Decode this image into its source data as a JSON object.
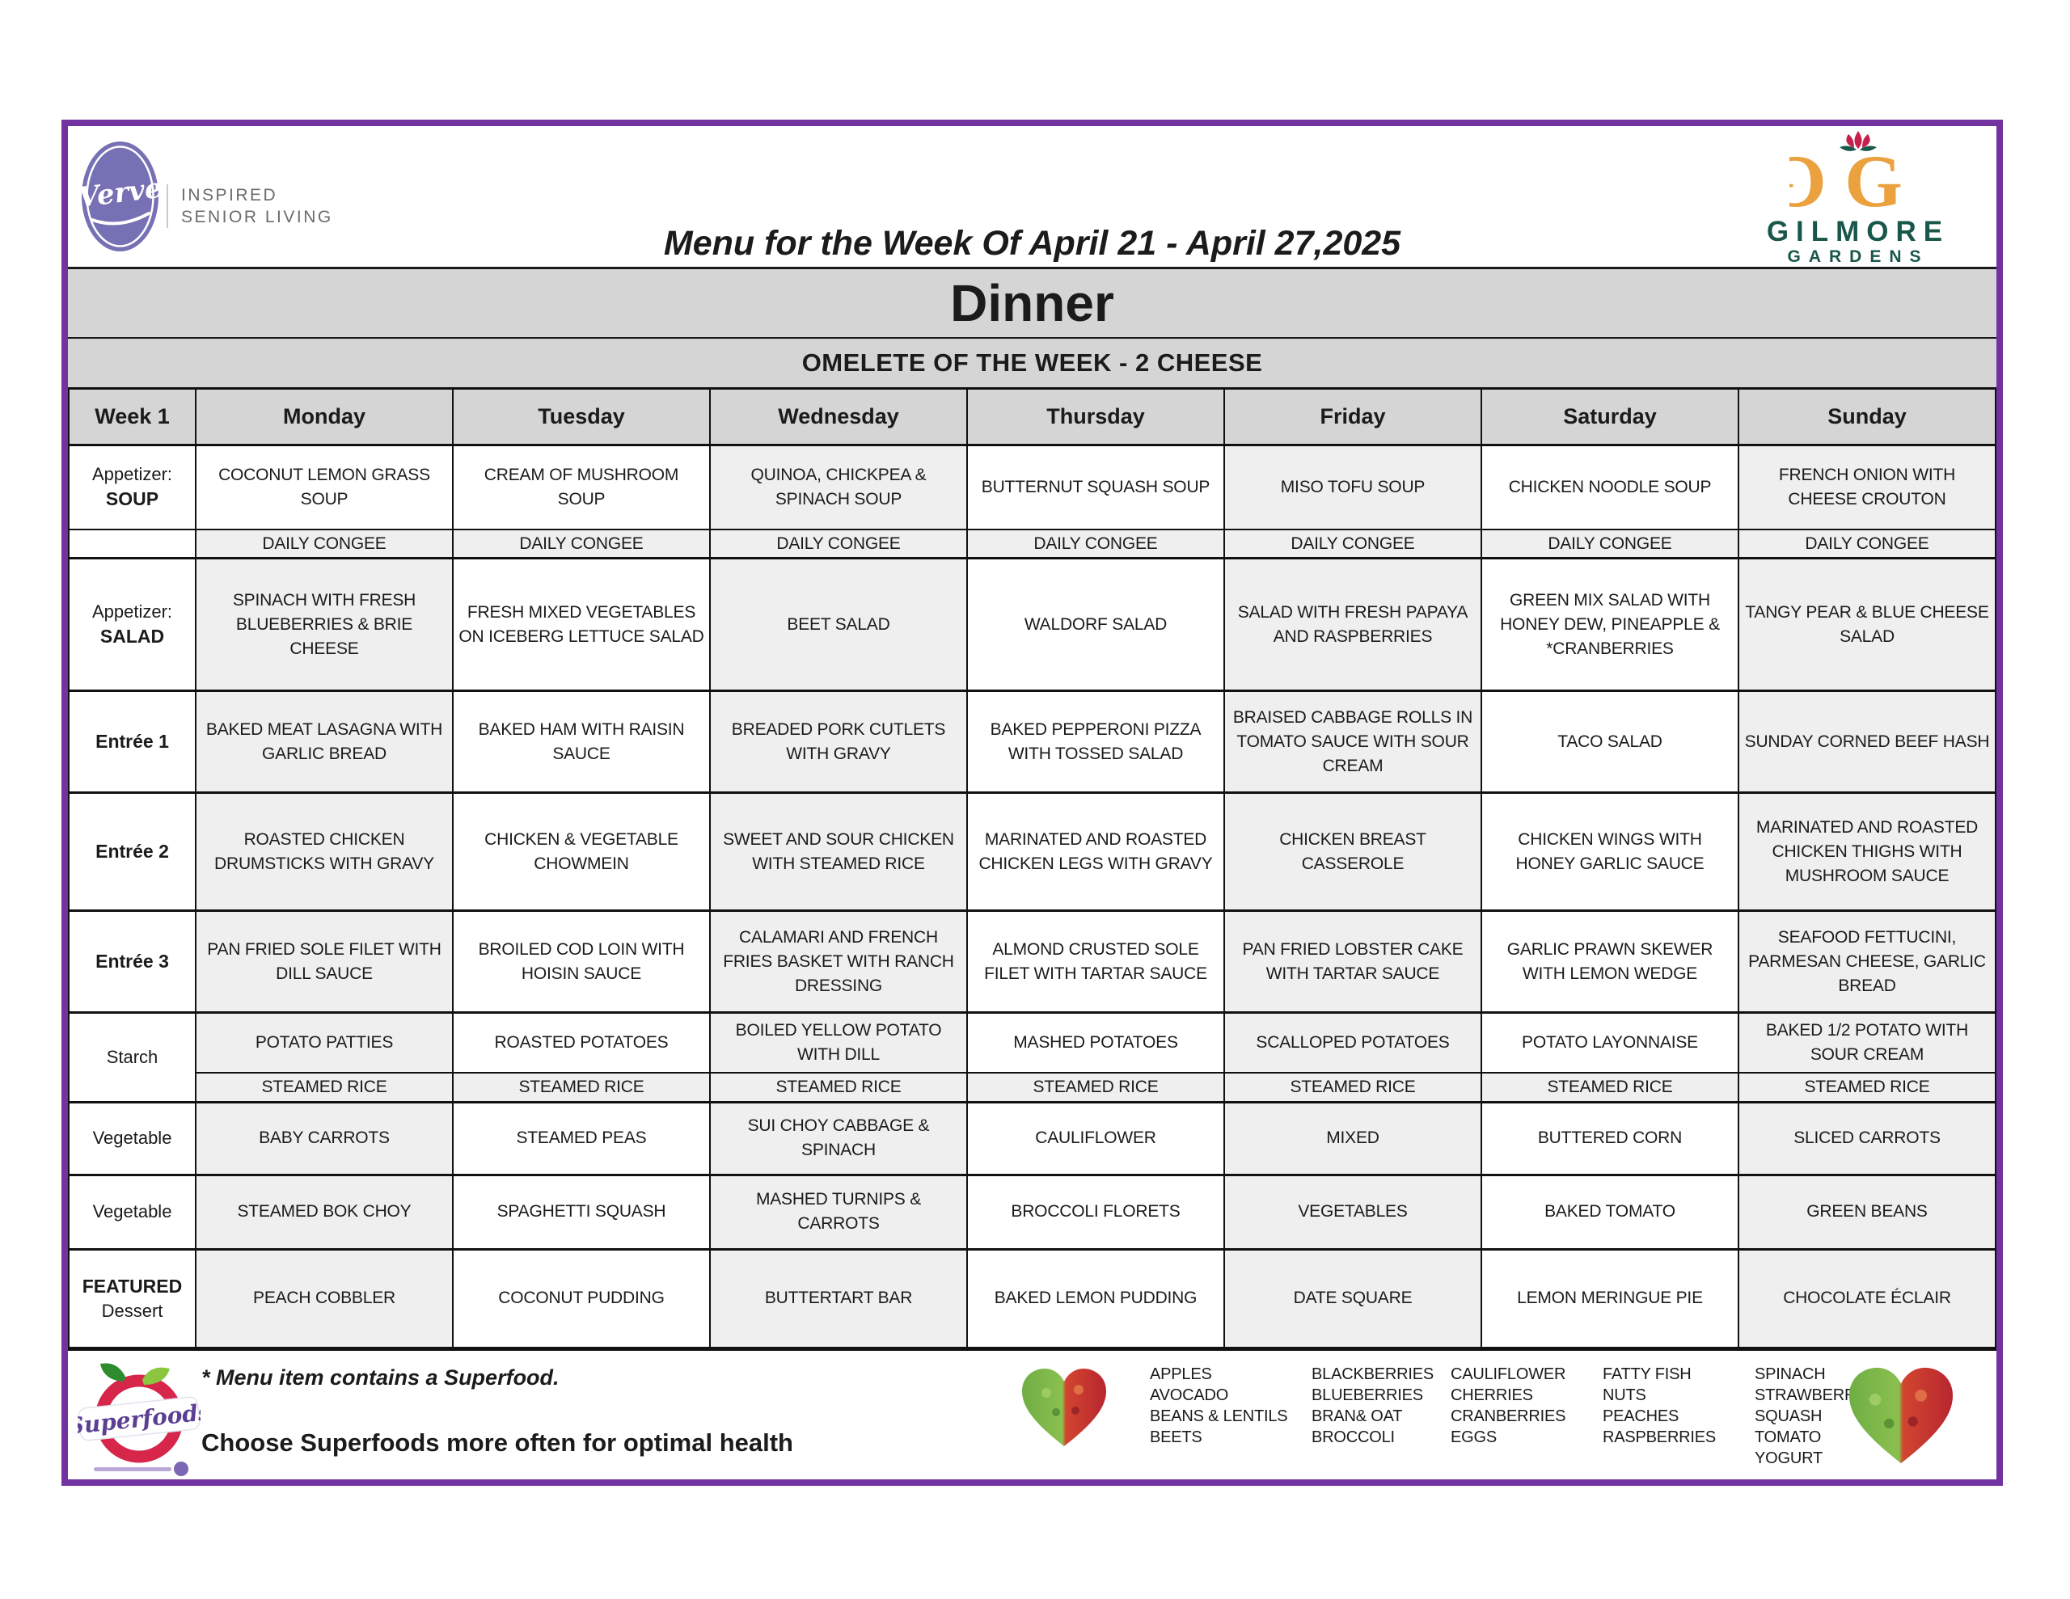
{
  "page": {
    "title": "Menu for the Week Of April 21 - April 27,2025",
    "meal_title": "Dinner",
    "banner": "OMELETE OF THE WEEK - 2 CHEESE"
  },
  "colors": {
    "frame_purple": "#7133a0",
    "banner_gray": "#d5d5d5",
    "cell_gray": "#efefef",
    "verve_purple": "#7670b4",
    "gilmore_gold": "#eaa13e",
    "gilmore_green": "#1a574b",
    "gilmore_red": "#c51f4c",
    "superfoods_red": "#d6264a",
    "superfoods_purple": "#5b3f92"
  },
  "brand": {
    "verve_name": "Verve",
    "verve_tagline_line1": "INSPIRED",
    "verve_tagline_line2": "SENIOR LIVING",
    "gilmore_name": "GILMORE",
    "gilmore_sub": "GARDENS"
  },
  "table": {
    "week_label": "Week 1",
    "days": [
      "Monday",
      "Tuesday",
      "Wednesday",
      "Thursday",
      "Friday",
      "Saturday",
      "Sunday"
    ],
    "rows": [
      {
        "id": "soup",
        "type": "main",
        "label": [
          "Appetizer:",
          "SOUP"
        ],
        "bold": 1,
        "shaded": [
          2,
          4,
          6
        ],
        "cells": [
          "COCONUT LEMON GRASS SOUP",
          "CREAM OF MUSHROOM SOUP",
          "QUINOA, CHICKPEA & SPINACH SOUP",
          "BUTTERNUT SQUASH SOUP",
          "MISO TOFU SOUP",
          "CHICKEN NOODLE SOUP",
          "FRENCH ONION WITH CHEESE CROUTON"
        ]
      },
      {
        "id": "congee",
        "type": "sub",
        "label": [],
        "bold": -1,
        "shaded": [
          0,
          1,
          2,
          3,
          4,
          5,
          6
        ],
        "cells": [
          "DAILY CONGEE",
          "DAILY CONGEE",
          "DAILY CONGEE",
          "DAILY CONGEE",
          "DAILY CONGEE",
          "DAILY CONGEE",
          "DAILY CONGEE"
        ]
      },
      {
        "id": "salad",
        "type": "main",
        "label": [
          "Appetizer:",
          "SALAD"
        ],
        "bold": 1,
        "shaded": [
          0,
          2,
          4,
          6
        ],
        "cells": [
          "SPINACH WITH FRESH BLUEBERRIES & BRIE CHEESE",
          "FRESH MIXED VEGETABLES ON ICEBERG LETTUCE SALAD",
          "BEET SALAD",
          "WALDORF SALAD",
          "SALAD WITH FRESH PAPAYA AND RASPBERRIES",
          "GREEN MIX SALAD WITH HONEY DEW, PINEAPPLE &  *CRANBERRIES",
          "TANGY PEAR & BLUE CHEESE SALAD"
        ]
      },
      {
        "id": "entree1",
        "type": "main",
        "label": [
          "Entrée 1"
        ],
        "bold": 0,
        "shaded": [
          0,
          2,
          4,
          6
        ],
        "cells": [
          "BAKED MEAT LASAGNA WITH GARLIC BREAD",
          "BAKED HAM WITH RAISIN SAUCE",
          "BREADED PORK CUTLETS WITH GRAVY",
          "BAKED PEPPERONI PIZZA WITH TOSSED SALAD",
          "BRAISED CABBAGE ROLLS IN TOMATO SAUCE WITH SOUR CREAM",
          "TACO SALAD",
          "SUNDAY CORNED BEEF HASH"
        ]
      },
      {
        "id": "entree2",
        "type": "main",
        "label": [
          "Entrée 2"
        ],
        "bold": 0,
        "shaded": [
          0,
          2,
          4,
          6
        ],
        "cells": [
          "ROASTED CHICKEN DRUMSTICKS WITH GRAVY",
          "CHICKEN & VEGETABLE CHOWMEIN",
          "SWEET AND SOUR CHICKEN WITH STEAMED RICE",
          "MARINATED AND ROASTED CHICKEN LEGS WITH GRAVY",
          "CHICKEN BREAST CASSEROLE",
          "CHICKEN WINGS WITH HONEY GARLIC SAUCE",
          "MARINATED AND ROASTED CHICKEN THIGHS WITH MUSHROOM SAUCE"
        ]
      },
      {
        "id": "entree3",
        "type": "main",
        "label": [
          "Entrée 3"
        ],
        "bold": 0,
        "shaded": [
          0,
          2,
          4,
          6
        ],
        "cells": [
          "PAN FRIED SOLE FILET WITH DILL SAUCE",
          "BROILED COD LOIN WITH HOISIN SAUCE",
          "CALAMARI AND FRENCH FRIES BASKET WITH RANCH DRESSING",
          "ALMOND CRUSTED SOLE FILET WITH TARTAR SAUCE",
          "PAN FRIED LOBSTER CAKE WITH TARTAR SAUCE",
          "GARLIC PRAWN SKEWER WITH LEMON WEDGE",
          "SEAFOOD FETTUCINI, PARMESAN CHEESE, GARLIC BREAD"
        ]
      },
      {
        "id": "starch",
        "type": "main",
        "label": [
          "Starch"
        ],
        "bold": -1,
        "rowspan": 2,
        "shaded": [
          0,
          2,
          4,
          6
        ],
        "cells": [
          "POTATO PATTIES",
          "ROASTED POTATOES",
          "BOILED YELLOW POTATO WITH DILL",
          "MASHED POTATOES",
          "SCALLOPED POTATOES",
          "POTATO LAYONNAISE",
          "BAKED 1/2 POTATO WITH SOUR CREAM"
        ]
      },
      {
        "id": "rice",
        "type": "sub",
        "label": null,
        "bold": -1,
        "shaded": [
          0,
          1,
          2,
          3,
          4,
          5,
          6
        ],
        "cells": [
          "STEAMED RICE",
          "STEAMED RICE",
          "STEAMED RICE",
          "STEAMED RICE",
          "STEAMED RICE",
          "STEAMED RICE",
          "STEAMED RICE"
        ]
      },
      {
        "id": "veg1",
        "type": "main",
        "label": [
          "Vegetable"
        ],
        "bold": -1,
        "shaded": [
          0,
          2,
          4,
          6
        ],
        "cells": [
          "BABY CARROTS",
          "STEAMED PEAS",
          "SUI CHOY CABBAGE & SPINACH",
          "CAULIFLOWER",
          "MIXED",
          "BUTTERED CORN",
          "SLICED CARROTS"
        ]
      },
      {
        "id": "veg2",
        "type": "main",
        "label": [
          "Vegetable"
        ],
        "bold": -1,
        "shaded": [
          0,
          2,
          4,
          6
        ],
        "cells": [
          "STEAMED BOK CHOY",
          "SPAGHETTI SQUASH",
          "MASHED TURNIPS & CARROTS",
          "BROCCOLI FLORETS",
          "VEGETABLES",
          "BAKED TOMATO",
          "GREEN BEANS"
        ]
      },
      {
        "id": "dessert",
        "type": "main",
        "label": [
          "FEATURED",
          "Dessert"
        ],
        "bold": 0,
        "shaded": [
          0,
          2,
          4,
          6
        ],
        "cells": [
          "PEACH COBBLER",
          "COCONUT PUDDING",
          "BUTTERTART BAR",
          "BAKED LEMON PUDDING",
          "DATE SQUARE",
          "LEMON MERINGUE PIE",
          "CHOCOLATE ÉCLAIR"
        ]
      }
    ]
  },
  "footer": {
    "superfoods_logo_text": "Superfoods",
    "note_line1": "* Menu item contains a Superfood.",
    "note_line2": "Choose Superfoods more often for optimal health",
    "superfood_columns": [
      [
        "APPLES",
        "AVOCADO",
        "BEANS & LENTILS",
        "BEETS"
      ],
      [
        "BLACKBERRIES",
        "BLUEBERRIES",
        "BRAN& OAT",
        "BROCCOLI"
      ],
      [
        "CAULIFLOWER",
        "CHERRIES",
        "CRANBERRIES",
        "EGGS"
      ],
      [
        "FATTY FISH",
        "NUTS",
        "PEACHES",
        "RASPBERRIES"
      ],
      [
        "SPINACH",
        "STRAWBERRIES",
        "SQUASH",
        "TOMATO",
        "YOGURT"
      ]
    ]
  }
}
